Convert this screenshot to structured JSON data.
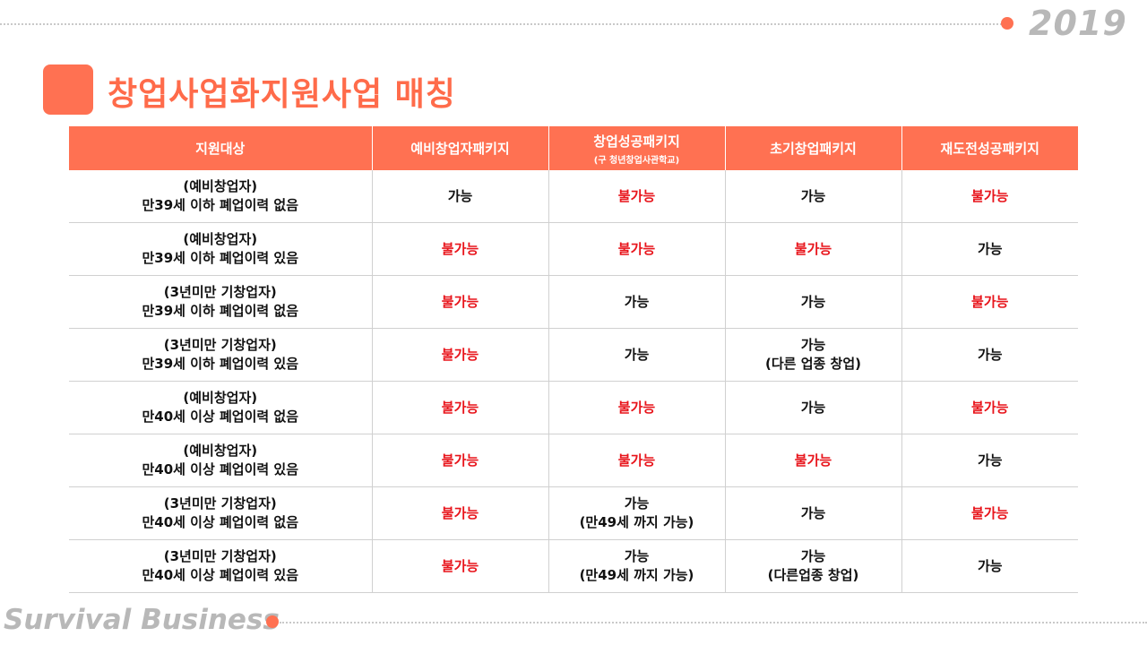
{
  "year": "2019",
  "title": "창업사업화지원사업 매칭",
  "footer_brand": "Survival Business",
  "colors": {
    "accent": "#ff7152",
    "negative": "#e8141b"
  },
  "table": {
    "headers": [
      {
        "label": "지원대상",
        "sub": ""
      },
      {
        "label": "예비창업자패키지",
        "sub": ""
      },
      {
        "label": "창업성공패키지",
        "sub": "(구 청년창업사관학교)"
      },
      {
        "label": "초기창업패키지",
        "sub": ""
      },
      {
        "label": "재도전성공패키지",
        "sub": ""
      }
    ],
    "rows": [
      {
        "target": [
          "(예비창업자)",
          "만39세 이하 폐업이력 없음"
        ],
        "cells": [
          {
            "text": [
              "가능"
            ],
            "negative": false
          },
          {
            "text": [
              "불가능"
            ],
            "negative": true
          },
          {
            "text": [
              "가능"
            ],
            "negative": false
          },
          {
            "text": [
              "불가능"
            ],
            "negative": true
          }
        ]
      },
      {
        "target": [
          "(예비창업자)",
          "만39세 이하 폐업이력 있음"
        ],
        "cells": [
          {
            "text": [
              "불가능"
            ],
            "negative": true
          },
          {
            "text": [
              "불가능"
            ],
            "negative": true
          },
          {
            "text": [
              "불가능"
            ],
            "negative": true
          },
          {
            "text": [
              "가능"
            ],
            "negative": false
          }
        ]
      },
      {
        "target": [
          "(3년미만 기창업자)",
          "만39세 이하 폐업이력 없음"
        ],
        "cells": [
          {
            "text": [
              "불가능"
            ],
            "negative": true
          },
          {
            "text": [
              "가능"
            ],
            "negative": false
          },
          {
            "text": [
              "가능"
            ],
            "negative": false
          },
          {
            "text": [
              "불가능"
            ],
            "negative": true
          }
        ]
      },
      {
        "target": [
          "(3년미만 기창업자)",
          "만39세 이하 폐업이력 있음"
        ],
        "cells": [
          {
            "text": [
              "불가능"
            ],
            "negative": true
          },
          {
            "text": [
              "가능"
            ],
            "negative": false
          },
          {
            "text": [
              "가능",
              "(다른 업종 창업)"
            ],
            "negative": false
          },
          {
            "text": [
              "가능"
            ],
            "negative": false
          }
        ]
      },
      {
        "target": [
          "(예비창업자)",
          "만40세 이상 폐업이력 없음"
        ],
        "cells": [
          {
            "text": [
              "불가능"
            ],
            "negative": true
          },
          {
            "text": [
              "불가능"
            ],
            "negative": true
          },
          {
            "text": [
              "가능"
            ],
            "negative": false
          },
          {
            "text": [
              "불가능"
            ],
            "negative": true
          }
        ]
      },
      {
        "target": [
          "(예비창업자)",
          "만40세 이상 폐업이력 있음"
        ],
        "cells": [
          {
            "text": [
              "불가능"
            ],
            "negative": true
          },
          {
            "text": [
              "불가능"
            ],
            "negative": true
          },
          {
            "text": [
              "불가능"
            ],
            "negative": true
          },
          {
            "text": [
              "가능"
            ],
            "negative": false
          }
        ]
      },
      {
        "target": [
          "(3년미만 기창업자)",
          "만40세 이상 폐업이력 없음"
        ],
        "cells": [
          {
            "text": [
              "불가능"
            ],
            "negative": true
          },
          {
            "text": [
              "가능",
              "(만49세 까지 가능)"
            ],
            "negative": false
          },
          {
            "text": [
              "가능"
            ],
            "negative": false
          },
          {
            "text": [
              "불가능"
            ],
            "negative": true
          }
        ]
      },
      {
        "target": [
          "(3년미만 기창업자)",
          "만40세 이상 폐업이력 있음"
        ],
        "cells": [
          {
            "text": [
              "불가능"
            ],
            "negative": true
          },
          {
            "text": [
              "가능",
              "(만49세 까지 가능)"
            ],
            "negative": false
          },
          {
            "text": [
              "가능",
              "(다른업종 창업)"
            ],
            "negative": false
          },
          {
            "text": [
              "가능"
            ],
            "negative": false
          }
        ]
      }
    ]
  }
}
